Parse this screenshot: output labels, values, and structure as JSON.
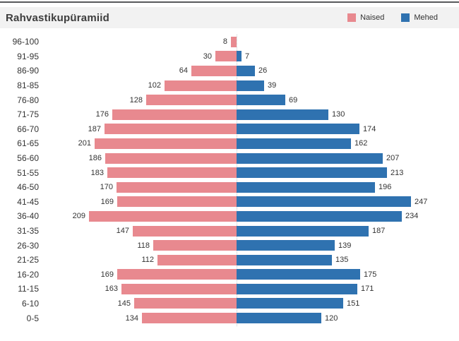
{
  "header": {
    "title": "Rahvastikupüramiid",
    "legend": [
      {
        "label": "Naised",
        "color": "#e8898f"
      },
      {
        "label": "Mehed",
        "color": "#2f72b0"
      }
    ]
  },
  "chart_data": {
    "type": "bar",
    "subtype": "population-pyramid",
    "title": "Rahvastikupüramiid",
    "orientation": "horizontal",
    "legend_position": "top-right",
    "grid": false,
    "center_axis_style": "dotted",
    "value_labels": "outside-bar-ends",
    "categories": [
      "96-100",
      "91-95",
      "86-90",
      "81-85",
      "76-80",
      "71-75",
      "66-70",
      "61-65",
      "56-60",
      "51-55",
      "46-50",
      "41-45",
      "36-40",
      "31-35",
      "26-30",
      "21-25",
      "16-20",
      "11-15",
      "6-10",
      "0-5"
    ],
    "series": [
      {
        "name": "Naised",
        "side": "left",
        "color": "#e8898f",
        "values": [
          8,
          30,
          64,
          102,
          128,
          176,
          187,
          201,
          186,
          183,
          170,
          169,
          209,
          147,
          118,
          112,
          169,
          163,
          145,
          134
        ]
      },
      {
        "name": "Mehed",
        "side": "right",
        "color": "#2f72b0",
        "values": [
          null,
          7,
          26,
          39,
          69,
          130,
          174,
          162,
          207,
          213,
          196,
          247,
          234,
          187,
          139,
          135,
          175,
          171,
          151,
          120
        ]
      }
    ],
    "xlim_left": [
      0,
      280
    ],
    "xlim_right": [
      0,
      315
    ]
  }
}
